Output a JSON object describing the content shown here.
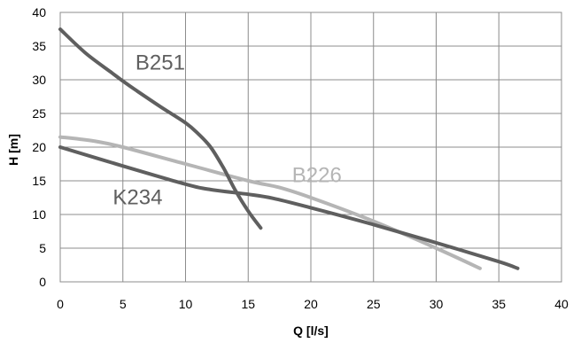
{
  "chart_data": {
    "type": "line",
    "xlabel": "Q [l/s]",
    "ylabel": "H [m]",
    "xlim": [
      0,
      40
    ],
    "ylim": [
      0,
      40
    ],
    "xticks": [
      "0",
      "5",
      "10",
      "15",
      "20",
      "25",
      "30",
      "35",
      "40"
    ],
    "yticks": [
      "0",
      "5",
      "10",
      "15",
      "20",
      "25",
      "30",
      "35",
      "40"
    ],
    "grid": true,
    "legend": "none",
    "series": [
      {
        "name": "B251",
        "color": "#5f5f5f",
        "x": [
          0,
          2,
          4,
          5,
          6,
          8,
          10,
          11,
          12,
          13,
          14,
          15,
          16
        ],
        "y": [
          37.5,
          34.0,
          31.2,
          29.8,
          28.5,
          26.0,
          23.6,
          22.0,
          20.0,
          17.0,
          13.5,
          10.5,
          8.0
        ]
      },
      {
        "name": "B226",
        "color": "#b5b5b5",
        "x": [
          0,
          1.5,
          3,
          5,
          10,
          15,
          17.5,
          20,
          25,
          30,
          33.5
        ],
        "y": [
          21.5,
          21.2,
          20.8,
          20.0,
          17.5,
          15.0,
          14.0,
          12.5,
          9.0,
          5.0,
          2.0
        ]
      },
      {
        "name": "K234",
        "color": "#5f5f5f",
        "x": [
          0,
          5,
          10,
          12,
          15,
          17,
          20,
          25,
          30,
          35,
          36.5
        ],
        "y": [
          20.0,
          17.2,
          14.5,
          13.7,
          13.0,
          12.4,
          11.0,
          8.5,
          5.8,
          3.0,
          2.0
        ]
      }
    ]
  }
}
